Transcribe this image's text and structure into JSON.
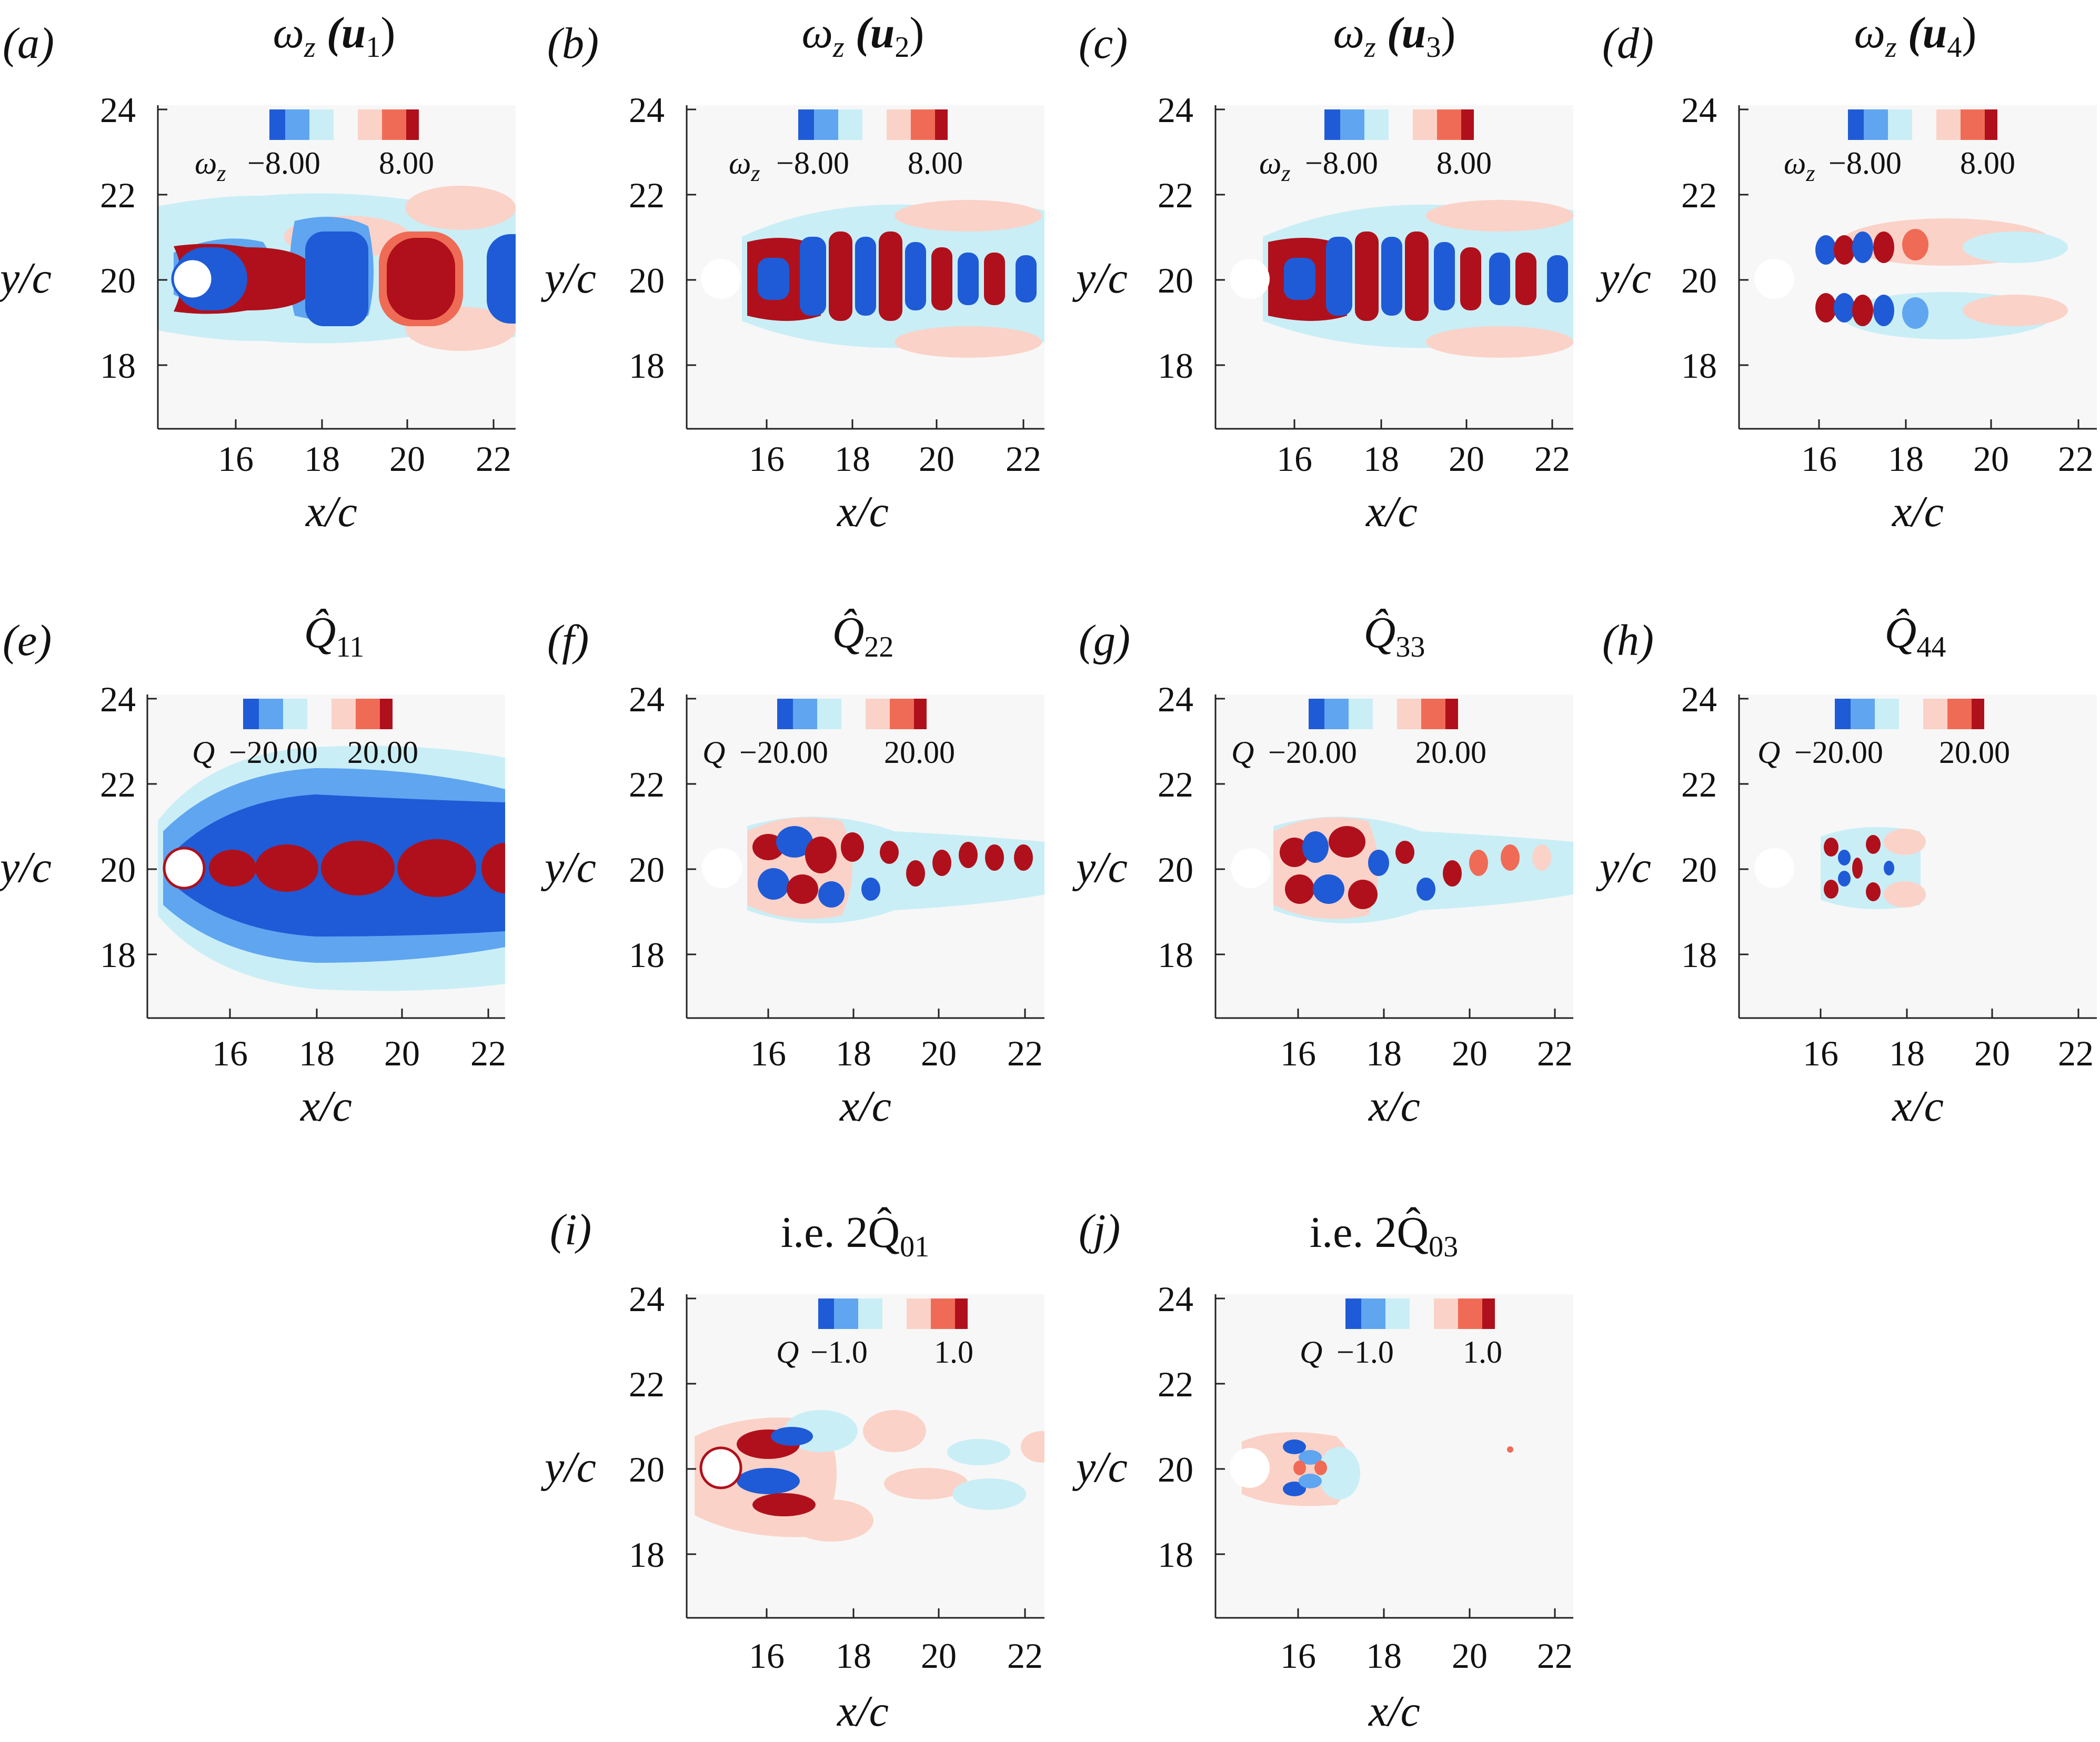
{
  "colors": {
    "levels": [
      "#1f5bd6",
      "#5fa5f0",
      "#c9eef6",
      "#f7f7f7",
      "#fbd2c8",
      "#f06b55",
      "#b0101b"
    ],
    "background": "#f7f7f7",
    "cylinder": "#ffffff"
  },
  "axes": {
    "xlabel": "x/c",
    "ylabel": "y/c",
    "xticks": [
      "16",
      "18",
      "20",
      "22"
    ],
    "yticks": [
      "24",
      "22",
      "20",
      "18"
    ],
    "xlim": [
      14.2,
      22.5
    ],
    "ylim": [
      16.5,
      24.3
    ]
  },
  "panels": [
    {
      "letter": "(a)",
      "title_main": "ω",
      "title_sub": "z",
      "title_extra": " (u",
      "title_idx": "1",
      "cbar_symbol": "ω",
      "cbar_symbol_sub": "z",
      "cbar_min": "−8.00",
      "cbar_max": "8.00"
    },
    {
      "letter": "(b)",
      "title_main": "ω",
      "title_sub": "z",
      "title_extra": " (u",
      "title_idx": "2",
      "cbar_symbol": "ω",
      "cbar_symbol_sub": "z",
      "cbar_min": "−8.00",
      "cbar_max": "8.00"
    },
    {
      "letter": "(c)",
      "title_main": "ω",
      "title_sub": "z",
      "title_extra": " (u",
      "title_idx": "3",
      "cbar_symbol": "ω",
      "cbar_symbol_sub": "z",
      "cbar_min": "−8.00",
      "cbar_max": "8.00"
    },
    {
      "letter": "(d)",
      "title_main": "ω",
      "title_sub": "z",
      "title_extra": " (u",
      "title_idx": "4",
      "cbar_symbol": "ω",
      "cbar_symbol_sub": "z",
      "cbar_min": "−8.00",
      "cbar_max": "8.00"
    },
    {
      "letter": "(e)",
      "title_main": "Q̂",
      "title_sub": "11",
      "title_extra": "",
      "title_idx": "",
      "cbar_symbol": "Q",
      "cbar_symbol_sub": "",
      "cbar_min": "−20.00",
      "cbar_max": "20.00"
    },
    {
      "letter": "(f)",
      "title_main": "Q̂",
      "title_sub": "22",
      "title_extra": "",
      "title_idx": "",
      "cbar_symbol": "Q",
      "cbar_symbol_sub": "",
      "cbar_min": "−20.00",
      "cbar_max": "20.00"
    },
    {
      "letter": "(g)",
      "title_main": "Q̂",
      "title_sub": "33",
      "title_extra": "",
      "title_idx": "",
      "cbar_symbol": "Q",
      "cbar_symbol_sub": "",
      "cbar_min": "−20.00",
      "cbar_max": "20.00"
    },
    {
      "letter": "(h)",
      "title_main": "Q̂",
      "title_sub": "44",
      "title_extra": "",
      "title_idx": "",
      "cbar_symbol": "Q",
      "cbar_symbol_sub": "",
      "cbar_min": "−20.00",
      "cbar_max": "20.00"
    },
    {
      "letter": "(i)",
      "title_main": "i.e. 2Q̂",
      "title_sub": "01",
      "title_extra": "",
      "title_idx": "",
      "cbar_symbol": "Q",
      "cbar_symbol_sub": "",
      "cbar_min": "−1.0",
      "cbar_max": "1.0"
    },
    {
      "letter": "(j)",
      "title_main": "i.e. 2Q̂",
      "title_sub": "03",
      "title_extra": "",
      "title_idx": "",
      "cbar_symbol": "Q",
      "cbar_symbol_sub": "",
      "cbar_min": "−1.0",
      "cbar_max": "1.0"
    }
  ]
}
